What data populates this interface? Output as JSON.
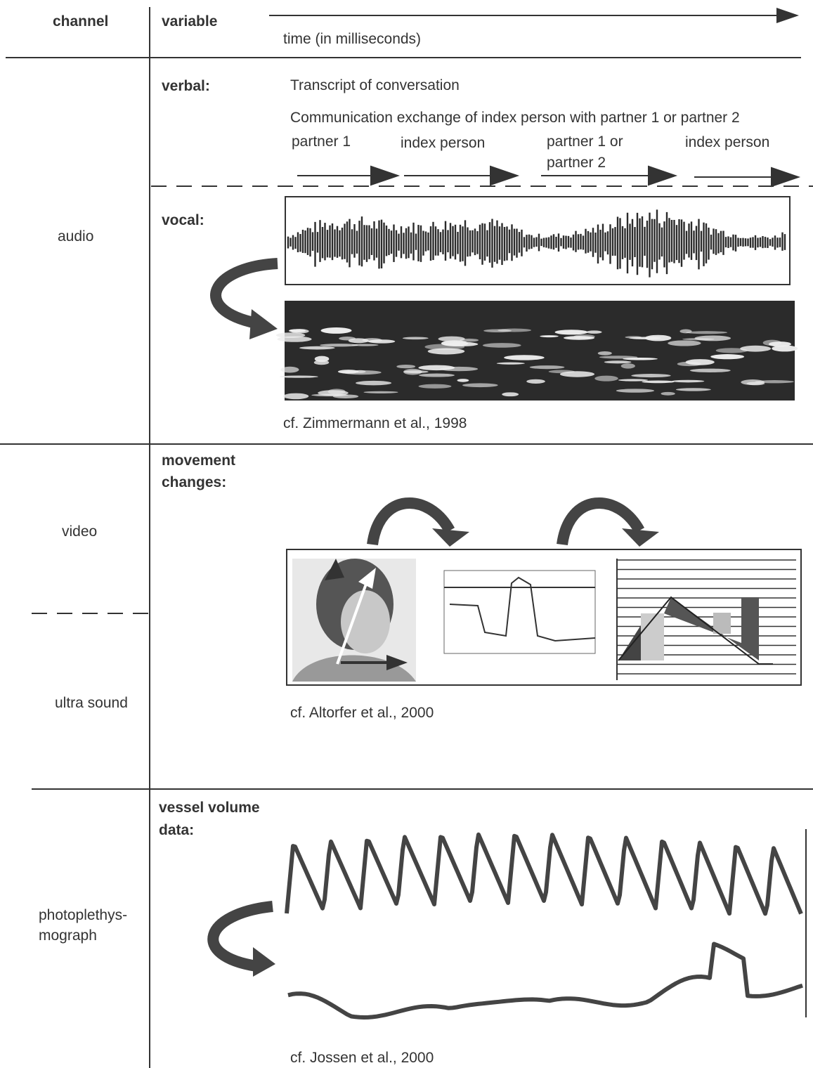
{
  "header": {
    "channel": "channel",
    "variable": "variable",
    "time_axis": "time (in milliseconds)"
  },
  "audio": {
    "channel": "audio",
    "verbal": {
      "label": "verbal:",
      "title": "Transcript of conversation",
      "subtitle": "Communication exchange of index person with partner 1 or partner 2",
      "turns": [
        [
          "partner 1"
        ],
        [
          "index person"
        ],
        [
          "partner 1 or",
          "partner 2"
        ],
        [
          "index person"
        ]
      ]
    },
    "vocal": {
      "label": "vocal:",
      "citation": "cf. Zimmermann et al., 1998"
    }
  },
  "video": {
    "channels": [
      "video",
      "ultra sound"
    ],
    "label": [
      "movement",
      "changes:"
    ],
    "citation": "cf. Altorfer et al., 2000"
  },
  "photo": {
    "channel": [
      "photoplethys-",
      "mograph"
    ],
    "label": [
      "vessel volume",
      "data:"
    ],
    "citation": "cf. Jossen et al., 2000"
  }
}
